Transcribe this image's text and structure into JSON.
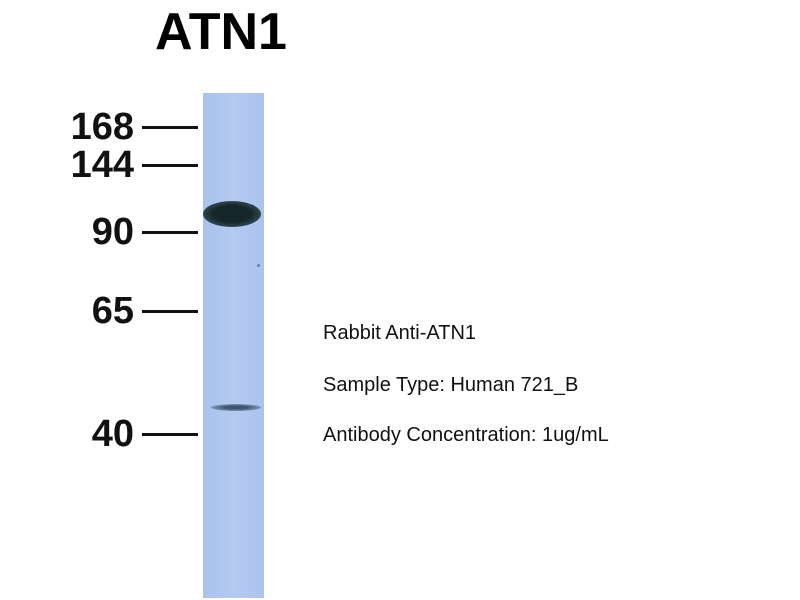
{
  "title": "ATN1",
  "markers": [
    {
      "label": "168"
    },
    {
      "label": "144"
    },
    {
      "label": "90"
    },
    {
      "label": "65"
    },
    {
      "label": "40"
    }
  ],
  "info": {
    "antibody": "Rabbit Anti-ATN1",
    "sample": "Sample Type: Human 721_B",
    "concentration": "Antibody Concentration: 1ug/mL"
  },
  "colors": {
    "lane": "#b1c8ef",
    "band": "#1a2a30"
  }
}
